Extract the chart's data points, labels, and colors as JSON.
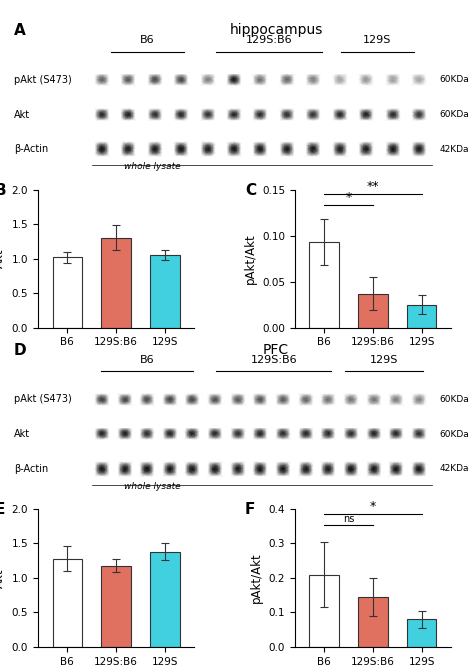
{
  "title_hippo": "hippocampus",
  "title_pfc": "PFC",
  "groups": [
    "B6",
    "129S:B6",
    "129S"
  ],
  "bar_colors": [
    "#ffffff",
    "#e07060",
    "#40d0e0"
  ],
  "bar_edgecolor": "#333333",
  "B_values": [
    1.02,
    1.3,
    1.05
  ],
  "B_errors": [
    0.08,
    0.18,
    0.07
  ],
  "B_ylim": [
    0,
    2.0
  ],
  "B_yticks": [
    0.0,
    0.5,
    1.0,
    1.5,
    2.0
  ],
  "B_ylabel": "Akt",
  "C_values": [
    0.093,
    0.037,
    0.025
  ],
  "C_errors": [
    0.025,
    0.018,
    0.01
  ],
  "C_ylim": [
    0,
    0.15
  ],
  "C_yticks": [
    0.0,
    0.05,
    0.1,
    0.15
  ],
  "C_ylabel": "pAkt/Akt",
  "E_values": [
    1.28,
    1.18,
    1.38
  ],
  "E_errors": [
    0.18,
    0.1,
    0.12
  ],
  "E_ylim": [
    0,
    2.0
  ],
  "E_yticks": [
    0.0,
    0.5,
    1.0,
    1.5,
    2.0
  ],
  "E_ylabel": "Akt",
  "F_values": [
    0.21,
    0.145,
    0.08
  ],
  "F_errors": [
    0.095,
    0.055,
    0.025
  ],
  "F_ylim": [
    0,
    0.4
  ],
  "F_yticks": [
    0.0,
    0.1,
    0.2,
    0.3,
    0.4
  ],
  "F_ylabel": "pAkt/Akt",
  "wb_label_pakt": "pAkt (S473)",
  "wb_label_akt": "Akt",
  "wb_label_actin": "β-Actin",
  "wb_label_60kda_1": "60KDa",
  "wb_label_60kda_2": "60KDa",
  "wb_label_42kda": "42KDa",
  "wb_whole_lysate": "whole lysate",
  "panel_labels": [
    "A",
    "B",
    "C",
    "D",
    "E",
    "F"
  ],
  "label_fontsize": 11,
  "tick_fontsize": 7.5,
  "axis_label_fontsize": 8.5,
  "title_fontsize": 10
}
